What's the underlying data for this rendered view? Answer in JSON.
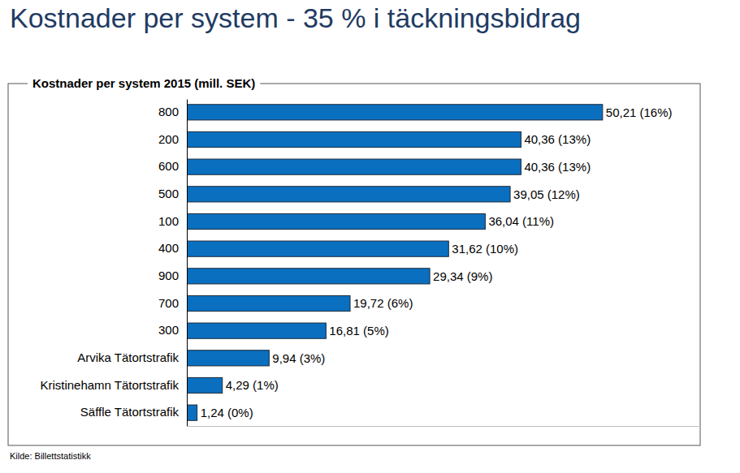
{
  "chart_data": {
    "type": "bar",
    "orientation": "horizontal",
    "title": "Kostnader per system - 35 % i täckningsbidrag",
    "subtitle": "Kostnader per system 2015 (mill. SEK)",
    "source": "Kilde: Billettstatistikk",
    "categories": [
      "800",
      "200",
      "600",
      "500",
      "100",
      "400",
      "900",
      "700",
      "300",
      "Arvika Tätortstrafik",
      "Kristinehamn Tätortstrafik",
      "Säffle Tätortstrafik"
    ],
    "values": [
      50.21,
      40.36,
      40.36,
      39.05,
      36.04,
      31.62,
      29.34,
      19.72,
      16.81,
      9.94,
      4.29,
      1.24
    ],
    "value_labels": [
      "50,21 (16%)",
      "40,36 (13%)",
      "40,36 (13%)",
      "39,05 (12%)",
      "36,04 (11%)",
      "31,62 (10%)",
      "29,34 (9%)",
      "19,72 (6%)",
      "16,81 (5%)",
      "9,94 (3%)",
      "4,29 (1%)",
      "1,24 (0%)"
    ],
    "color": "#0a6fbf",
    "xlim": [
      0,
      62
    ],
    "data_labels": true,
    "tick_labels": "y",
    "grid": false
  }
}
